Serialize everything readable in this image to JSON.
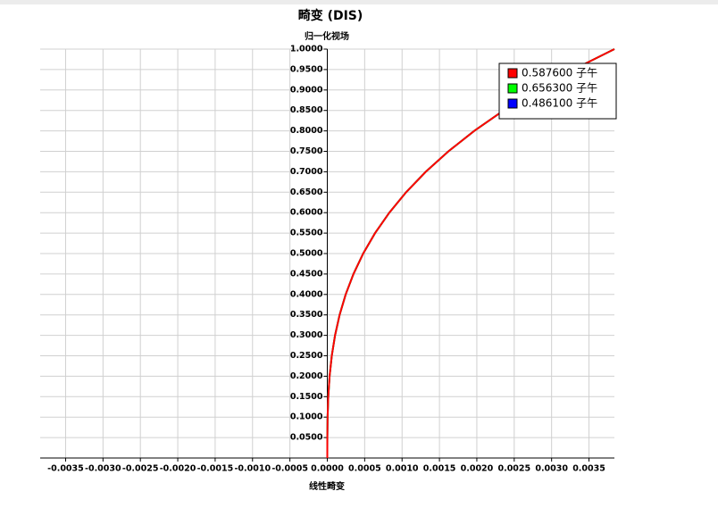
{
  "chart_data": {
    "type": "line",
    "title": "畸变 (DIS)",
    "y_label": "归一化视场",
    "x_label": "线性畸变",
    "y": [
      0,
      0.05,
      0.1,
      0.15,
      0.2,
      0.25,
      0.3,
      0.35,
      0.4,
      0.45,
      0.5,
      0.55,
      0.6,
      0.65,
      0.7,
      0.75,
      0.8,
      0.85,
      0.9,
      0.95,
      1.0
    ],
    "series": [
      {
        "name": "0.486100 子午",
        "color": "#0000ff",
        "x": [
          0,
          4.8e-07,
          3.84e-06,
          1.296e-05,
          3.072e-05,
          6e-05,
          0.00010368,
          0.00016464,
          0.00024576,
          0.00034992,
          0.00048,
          0.00063888,
          0.00082944,
          0.00105456,
          0.00131712,
          0.00162,
          0.00196608,
          0.00235824,
          0.00279936,
          0.00329232,
          0.00384
        ]
      },
      {
        "name": "0.656300 子午",
        "color": "#00ff00",
        "x": [
          0,
          4.8e-07,
          3.84e-06,
          1.296e-05,
          3.072e-05,
          6e-05,
          0.00010368,
          0.00016464,
          0.00024576,
          0.00034992,
          0.00048,
          0.00063888,
          0.00082944,
          0.00105456,
          0.00131712,
          0.00162,
          0.00196608,
          0.00235824,
          0.00279936,
          0.00329232,
          0.00384
        ]
      },
      {
        "name": "0.587600 子午",
        "color": "#ff0000",
        "x": [
          0,
          4.8e-07,
          3.84e-06,
          1.296e-05,
          3.072e-05,
          6e-05,
          0.00010368,
          0.00016464,
          0.00024576,
          0.00034992,
          0.00048,
          0.00063888,
          0.00082944,
          0.00105456,
          0.00131712,
          0.00162,
          0.00196608,
          0.00235824,
          0.00279936,
          0.00329232,
          0.00384
        ]
      }
    ],
    "legend_order": [
      2,
      1,
      0
    ],
    "xlim": [
      -0.00384,
      0.00384
    ],
    "ylim": [
      0,
      1
    ],
    "xticks": [
      {
        "value": -0.0035,
        "label": "-0.0035"
      },
      {
        "value": -0.003,
        "label": "-0.0030"
      },
      {
        "value": -0.0025,
        "label": "-0.0025"
      },
      {
        "value": -0.002,
        "label": "-0.0020"
      },
      {
        "value": -0.0015,
        "label": "-0.0015"
      },
      {
        "value": -0.001,
        "label": "-0.0010"
      },
      {
        "value": -0.0005,
        "label": "-0.0005"
      },
      {
        "value": 0,
        "label": "0.0000"
      },
      {
        "value": 0.0005,
        "label": "0.0005"
      },
      {
        "value": 0.001,
        "label": "0.0010"
      },
      {
        "value": 0.0015,
        "label": "0.0015"
      },
      {
        "value": 0.002,
        "label": "0.0020"
      },
      {
        "value": 0.0025,
        "label": "0.0025"
      },
      {
        "value": 0.003,
        "label": "0.0030"
      },
      {
        "value": 0.0035,
        "label": "0.0035"
      }
    ],
    "yticks": [
      {
        "value": 0.05,
        "label": "0.0500"
      },
      {
        "value": 0.1,
        "label": "0.1000"
      },
      {
        "value": 0.15,
        "label": "0.1500"
      },
      {
        "value": 0.2,
        "label": "0.2000"
      },
      {
        "value": 0.25,
        "label": "0.2500"
      },
      {
        "value": 0.3,
        "label": "0.3000"
      },
      {
        "value": 0.35,
        "label": "0.3500"
      },
      {
        "value": 0.4,
        "label": "0.4000"
      },
      {
        "value": 0.45,
        "label": "0.4500"
      },
      {
        "value": 0.5,
        "label": "0.5000"
      },
      {
        "value": 0.55,
        "label": "0.5500"
      },
      {
        "value": 0.6,
        "label": "0.6000"
      },
      {
        "value": 0.65,
        "label": "0.6500"
      },
      {
        "value": 0.7,
        "label": "0.7000"
      },
      {
        "value": 0.75,
        "label": "0.7500"
      },
      {
        "value": 0.8,
        "label": "0.8000"
      },
      {
        "value": 0.85,
        "label": "0.8500"
      },
      {
        "value": 0.9,
        "label": "0.9000"
      },
      {
        "value": 0.95,
        "label": "0.9500"
      },
      {
        "value": 1.0,
        "label": "1.0000"
      }
    ],
    "grid": true
  }
}
